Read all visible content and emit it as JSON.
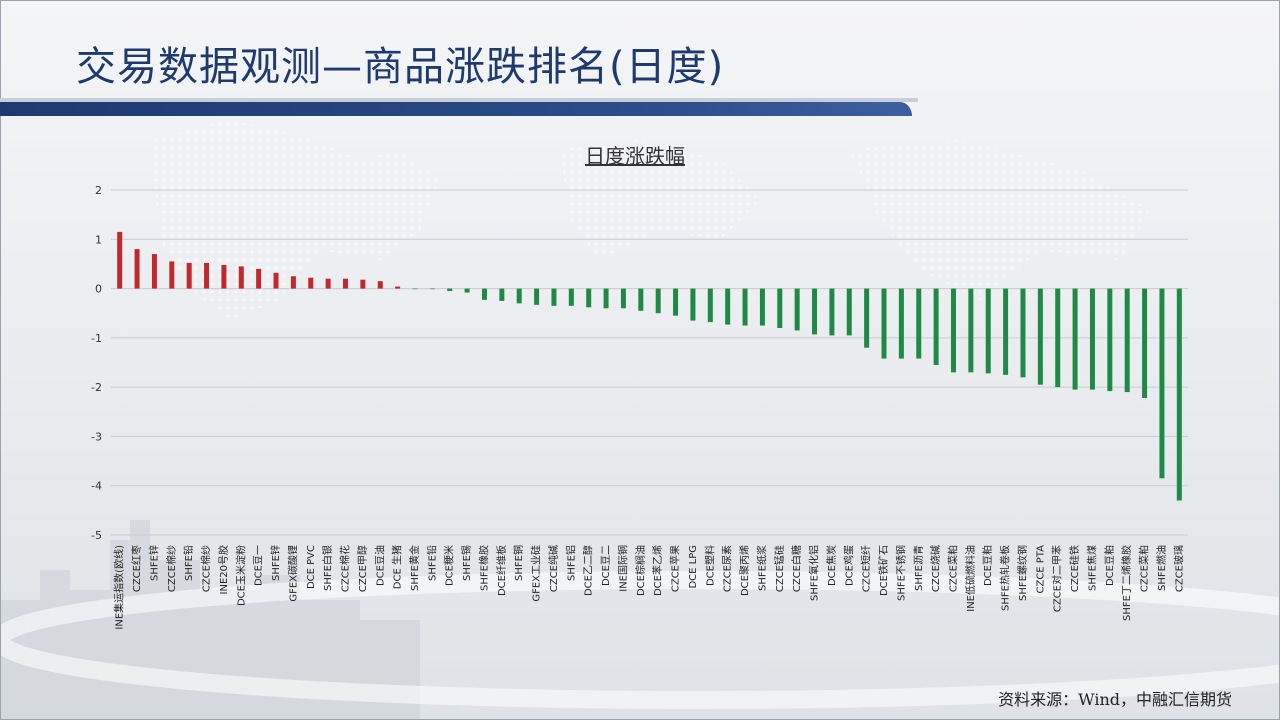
{
  "slide": {
    "title": "交易数据观测—商品涨跌排名(日度)",
    "source": "资料来源：Wind，中融汇信期货"
  },
  "colors": {
    "up": "#c0282d",
    "down": "#1f8a47",
    "title": "#1f3a6e",
    "band": "#1d3a70"
  },
  "chart_data": {
    "type": "bar",
    "title": "日度涨跌幅",
    "xlabel": "",
    "ylabel": "",
    "ylim": [
      -5,
      2
    ],
    "yticks": [
      2,
      1,
      0,
      -1,
      -2,
      -3,
      -4,
      -5
    ],
    "grid": true,
    "categories": [
      "INE集运指数(欧线)",
      "CZCE红枣",
      "SHFE锌",
      "CZCE棉纱",
      "SHFE铅",
      "CZCE棉纱",
      "INE20号胶",
      "DCE玉米淀粉",
      "DCE豆一",
      "SHFE锌",
      "GFEX碳酸锂",
      "DCE PVC",
      "SHFE白银",
      "CZCE棉花",
      "CZCE甲醇",
      "DCE豆油",
      "DCE 生猪",
      "SHFE黄金",
      "SHFE铅",
      "DCE粳米",
      "SHFE锡",
      "SHFE橡胶",
      "DCE纤维板",
      "SHFE铜",
      "GFEX工业硅",
      "CZCE纯碱",
      "SHFE铝",
      "DCE乙二醇",
      "DCE豆二",
      "INE国际铜",
      "DCE棕榈油",
      "DCE苯乙烯",
      "CZCE苹果",
      "DCE LPG",
      "DCE塑料",
      "CZCE尿素",
      "DCE聚丙烯",
      "SHFE纸浆",
      "CZCE锰硅",
      "CZCE白糖",
      "SHFE氧化铝",
      "DCE焦炭",
      "DCE鸡蛋",
      "CZCE短纤",
      "DCE铁矿石",
      "SHFE不锈钢",
      "SHFE沥青",
      "CZCE烧碱",
      "CZCE菜粕",
      "INE低硫燃料油",
      "DCE豆粕",
      "SHFE热轧卷板",
      "SHFE螺纹钢",
      "CZCE PTA",
      "CZCE对二甲苯",
      "CZCE硅铁",
      "SHFE焦煤",
      "DCE豆粕",
      "SHFE丁二烯橡胶",
      "CZCE菜粕",
      "SHFE燃油",
      "CZCE玻璃"
    ],
    "values": [
      1.15,
      0.8,
      0.7,
      0.55,
      0.52,
      0.52,
      0.48,
      0.45,
      0.4,
      0.32,
      0.25,
      0.22,
      0.2,
      0.2,
      0.18,
      0.15,
      0.04,
      -0.01,
      -0.01,
      -0.05,
      -0.08,
      -0.23,
      -0.25,
      -0.3,
      -0.33,
      -0.35,
      -0.35,
      -0.38,
      -0.4,
      -0.4,
      -0.45,
      -0.5,
      -0.55,
      -0.65,
      -0.68,
      -0.73,
      -0.75,
      -0.75,
      -0.8,
      -0.85,
      -0.93,
      -0.95,
      -0.95,
      -1.2,
      -1.42,
      -1.42,
      -1.42,
      -1.55,
      -1.7,
      -1.7,
      -1.72,
      -1.75,
      -1.8,
      -1.95,
      -2.0,
      -2.05,
      -2.05,
      -2.08,
      -2.1,
      -2.22,
      -3.85,
      -4.3
    ]
  }
}
